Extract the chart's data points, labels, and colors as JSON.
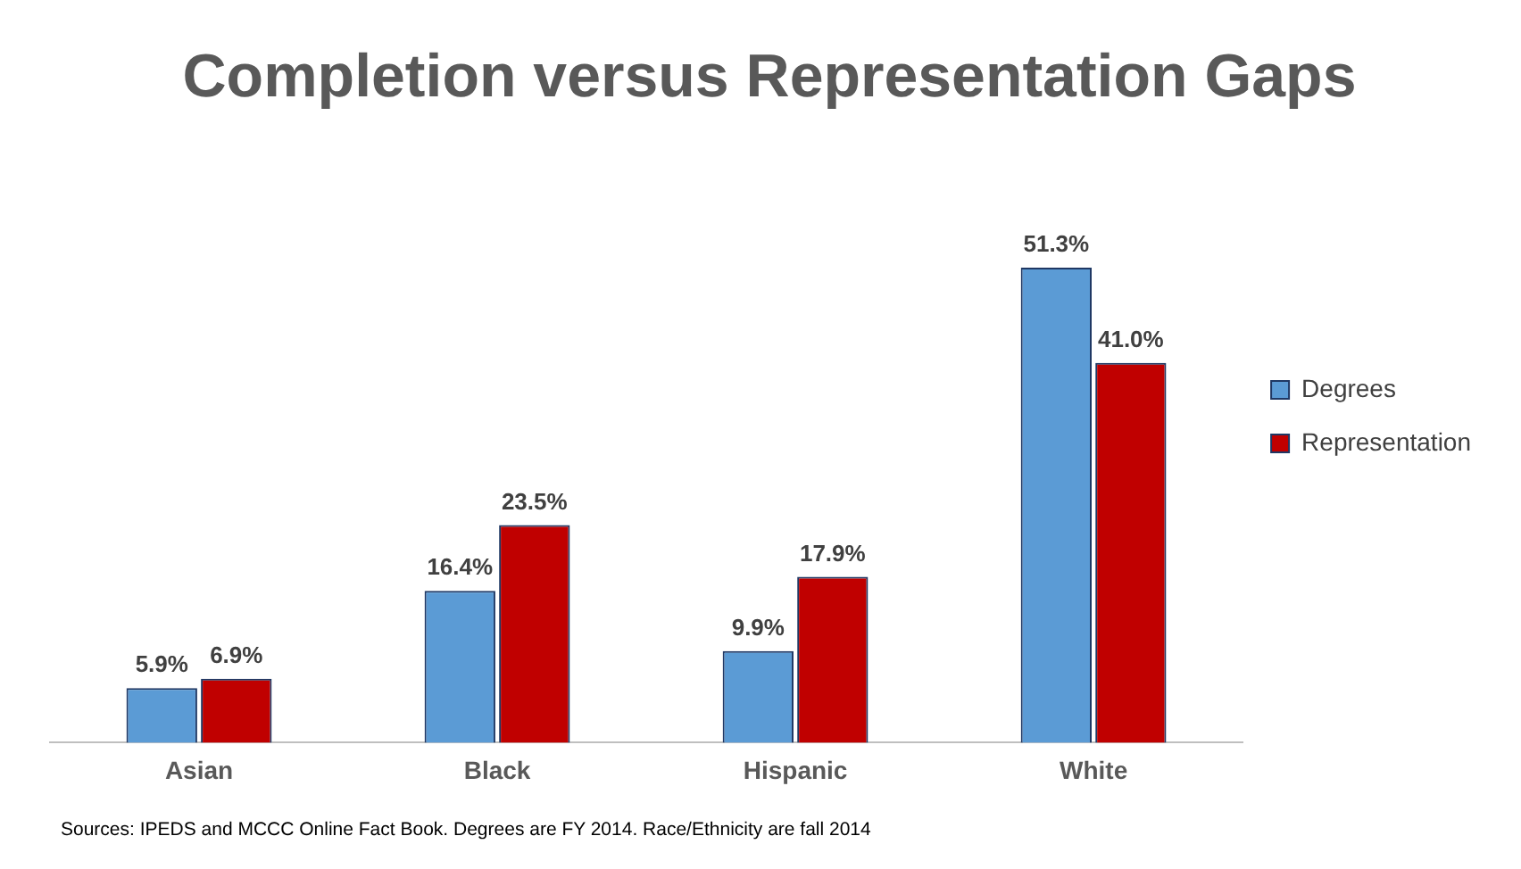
{
  "chart_data": {
    "type": "bar",
    "title": "Completion versus Representation Gaps",
    "categories": [
      "Asian",
      "Black",
      "Hispanic",
      "White"
    ],
    "series": [
      {
        "name": "Degrees",
        "color": "#5b9bd5",
        "values": [
          5.9,
          16.4,
          9.9,
          51.3
        ],
        "value_labels": [
          "5.9%",
          "16.4%",
          "9.9%",
          "51.3%"
        ]
      },
      {
        "name": "Representation",
        "color": "#c00000",
        "values": [
          6.9,
          23.5,
          17.9,
          41.0
        ],
        "value_labels": [
          "6.9%",
          "23.5%",
          "17.9%",
          "41.0%"
        ]
      }
    ],
    "legend": "top right",
    "grid": false,
    "annotations": [
      "Sources: IPEDS and MCCC Online Fact Book. Degrees are FY 2014. Race/Ethnicity are fall 2014"
    ]
  }
}
